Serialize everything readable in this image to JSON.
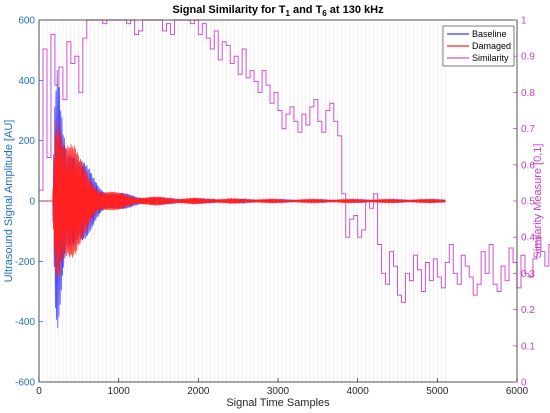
{
  "chart_data": {
    "type": "line",
    "title": {
      "prefix": "Signal Similarity for T",
      "sub1": "1",
      "mid": " and T",
      "sub2": "6",
      "suffix": " at 130 kHz"
    },
    "xlabel": "Signal Time Samples",
    "ylabel_left": "Ultrasound Signal Amplitude [AU]",
    "ylabel_right": "Similarity Measure [0,1]",
    "xlim": [
      0,
      6000
    ],
    "ylim_left": [
      -600,
      600
    ],
    "ylim_right": [
      0,
      1
    ],
    "xticks": [
      "0",
      "1000",
      "2000",
      "3000",
      "4000",
      "5000",
      "6000"
    ],
    "yticks_left": [
      "-600",
      "-400",
      "-200",
      "0",
      "200",
      "400",
      "600"
    ],
    "yticks_right": [
      "0",
      "0.1",
      "0.2",
      "0.3",
      "0.4",
      "0.5",
      "0.6",
      "0.7",
      "0.8",
      "0.9",
      "1"
    ],
    "grid": true,
    "legend_position": "top-right",
    "colors": {
      "baseline": "#3a3aff",
      "damaged": "#ff2020",
      "similarity": "#d24fd2",
      "left_axis": "#1f6fc2",
      "right_axis": "#c440c4"
    },
    "series": [
      {
        "name": "Baseline",
        "axis": "left",
        "kind": "damped_burst",
        "x": [
          0,
          170,
          200,
          230,
          260,
          300,
          350,
          400,
          450,
          500,
          600,
          700,
          800,
          900,
          1000,
          1200,
          1500,
          2000,
          3000,
          4000,
          5100
        ],
        "envelope": [
          0,
          0,
          380,
          560,
          540,
          420,
          330,
          280,
          230,
          160,
          120,
          85,
          60,
          40,
          30,
          20,
          12,
          8,
          5,
          5,
          5
        ]
      },
      {
        "name": "Damaged",
        "axis": "left",
        "kind": "damped_burst",
        "x": [
          0,
          170,
          200,
          230,
          260,
          300,
          350,
          400,
          450,
          500,
          600,
          700,
          800,
          900,
          1000,
          1200,
          1500,
          2000,
          3000,
          4000,
          5100
        ],
        "envelope": [
          0,
          0,
          360,
          500,
          480,
          380,
          300,
          250,
          200,
          150,
          110,
          80,
          55,
          38,
          28,
          20,
          14,
          10,
          6,
          6,
          6
        ]
      },
      {
        "name": "Similarity",
        "axis": "right",
        "kind": "step",
        "step": 50,
        "values": [
          0.53,
          0.92,
          0.62,
          0.96,
          0.82,
          0.87,
          0.78,
          0.94,
          0.88,
          0.9,
          0.8,
          0.95,
          1.0,
          1.0,
          1.0,
          1.0,
          0.99,
          1.0,
          1.0,
          1.0,
          1.0,
          1.0,
          0.99,
          1.0,
          0.96,
          0.97,
          1.0,
          1.0,
          1.0,
          1.0,
          1.0,
          0.97,
          0.99,
          0.96,
          1.0,
          1.0,
          1.0,
          1.0,
          0.99,
          1.0,
          0.96,
          0.99,
          0.95,
          0.92,
          0.97,
          0.89,
          0.94,
          0.93,
          0.88,
          0.9,
          0.85,
          0.92,
          0.84,
          0.86,
          0.83,
          0.8,
          0.86,
          0.82,
          0.77,
          0.8,
          0.75,
          0.7,
          0.74,
          0.76,
          0.72,
          0.69,
          0.74,
          0.71,
          0.76,
          0.78,
          0.72,
          0.69,
          0.75,
          0.77,
          0.72,
          0.68,
          0.52,
          0.4,
          0.45,
          0.46,
          0.4,
          0.42,
          0.5,
          0.48,
          0.52,
          0.38,
          0.3,
          0.27,
          0.36,
          0.32,
          0.24,
          0.22,
          0.3,
          0.28,
          0.35,
          0.31,
          0.25,
          0.33,
          0.28,
          0.34,
          0.29,
          0.26,
          0.33,
          0.38,
          0.3,
          0.27,
          0.35,
          0.32,
          0.29,
          0.24,
          0.27,
          0.36,
          0.3,
          0.38,
          0.27,
          0.25,
          0.32,
          0.28,
          0.37,
          0.33,
          0.26,
          0.35,
          0.3,
          0.29,
          0.34,
          0.4,
          0.36,
          0.32,
          0.38,
          0.33,
          0.25,
          0.3,
          0.36,
          0.34,
          0.28,
          0.3,
          0.27,
          0.29,
          0.37,
          0.31,
          0.33,
          0.26,
          0.3,
          0.35,
          0.28,
          0.25,
          0.3,
          0.27,
          0.24,
          0.3,
          0.28,
          0.32,
          0.27,
          0.25,
          0.33,
          0.3,
          0.28,
          0.36,
          0.3,
          0.25,
          0.31,
          0.35,
          0.27,
          0.22,
          0.3,
          0.34,
          0.29,
          0.33,
          0.38,
          0.31,
          0.26,
          0.3,
          0.35,
          0.31,
          0.28,
          0.36,
          0.32,
          0.37,
          0.33,
          0.39,
          0.43,
          0.33,
          0.27,
          0.38,
          0.34,
          0.31,
          0.07,
          0.1,
          0.26,
          0.28,
          0.22,
          0.25,
          0.24,
          0.24,
          0.24,
          0.24
        ]
      }
    ]
  }
}
